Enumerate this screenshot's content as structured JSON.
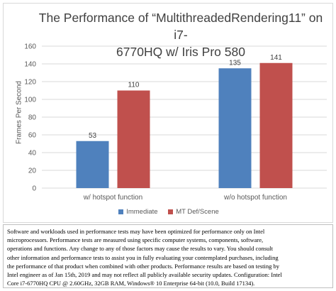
{
  "chart_data": {
    "type": "bar",
    "title": "The Performance of “MultithreadedRendering11” on i7-6770HQ w/ Iris Pro 580",
    "title_lines": [
      "The Performance of “MultithreadedRendering11” on i7-",
      "6770HQ w/ Iris Pro 580"
    ],
    "xlabel": "",
    "ylabel": "Frames Per Second",
    "categories": [
      "w/ hotspot function",
      "w/o hotspot function"
    ],
    "series": [
      {
        "name": "Immediate",
        "values": [
          53,
          135
        ],
        "color": "#4f81bd"
      },
      {
        "name": "MT Def/Scene",
        "values": [
          110,
          141
        ],
        "color": "#c0504d"
      }
    ],
    "ylim": [
      0,
      160
    ],
    "yticks": [
      0,
      20,
      40,
      60,
      80,
      100,
      120,
      140,
      160
    ],
    "grid": true,
    "legend_position": "bottom",
    "data_labels": true
  },
  "disclaimer_lines": [
    "Software and workloads used in performance tests may have been optimized for performance only on Intel",
    "microprocessors.  Performance tests are measured using specific computer systems, components, software,",
    "operations and functions.  Any change to any of those factors may cause the results to vary.  You should consult",
    "other information and performance tests to assist you in fully evaluating your contemplated purchases, including",
    "the performance of that product when combined with other products.  Performance results are based on testing by",
    "Intel engineer as of Jan 15th, 2019 and may not reflect all publicly available security updates.  Configuration: Intel",
    "Core i7-6770HQ CPU @ 2.60GHz, 32GB RAM, Windows® 10 Enterprise 64-bit (10.0, Build 17134)."
  ]
}
